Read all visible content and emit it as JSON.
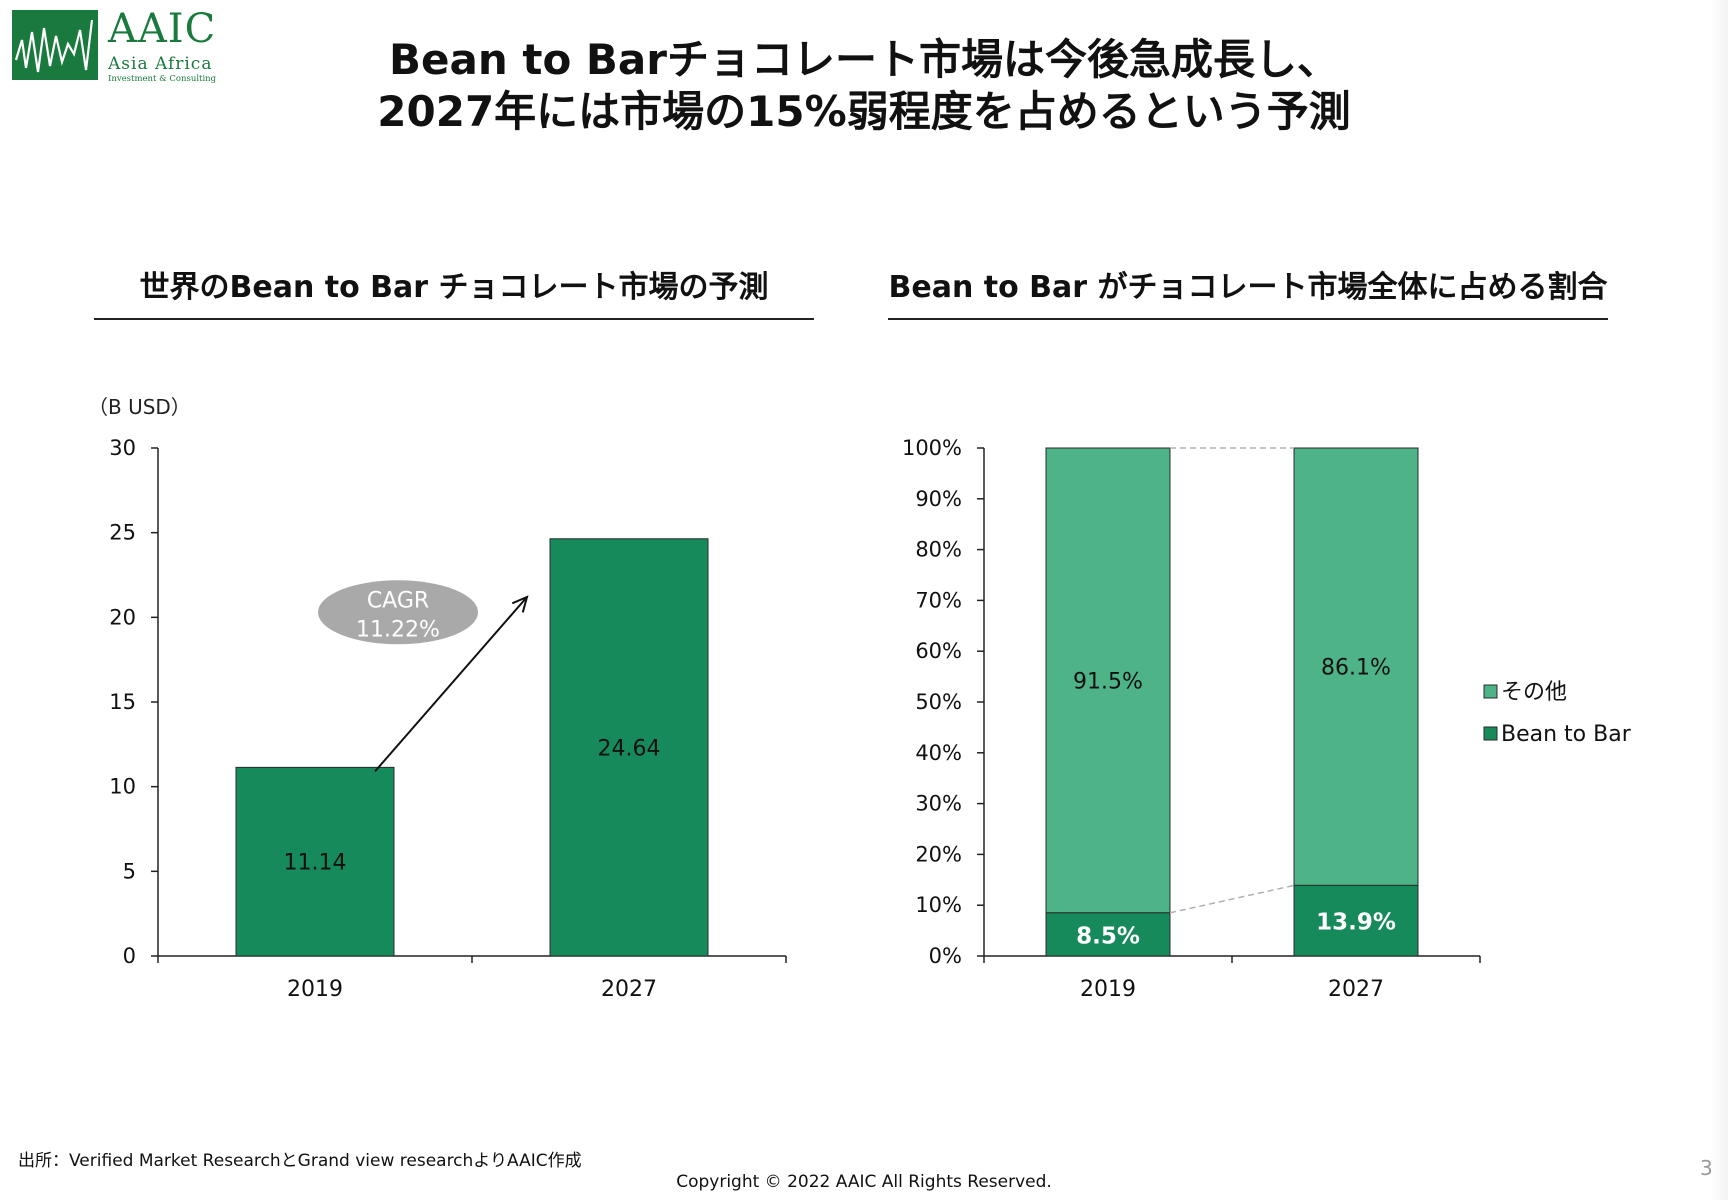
{
  "logo": {
    "text": "AAIC",
    "subtitle": "Asia Africa",
    "subtitle2": "Investment & Consulting",
    "color": "#1a7a3e"
  },
  "title": {
    "line1": "Bean to Barチョコレート市場は今後急成長し、",
    "line2": "2027年には市場の15%弱程度を占めるという予測"
  },
  "left_section": {
    "title": "世界のBean to Bar チョコレート市場の予測"
  },
  "right_section": {
    "title": "Bean to Bar がチョコレート市場全体に占める割合"
  },
  "chart_data": [
    {
      "type": "bar",
      "unit_label": "（B USD）",
      "categories": [
        "2019",
        "2027"
      ],
      "values": [
        11.14,
        24.64
      ],
      "value_labels": [
        "11.14",
        "24.64"
      ],
      "ylim": [
        0,
        30
      ],
      "yticks": [
        0,
        5,
        10,
        15,
        20,
        25,
        30
      ],
      "ytick_labels": [
        "0",
        "5",
        "10",
        "15",
        "20",
        "25",
        "30"
      ],
      "bar_color": "#168a5a",
      "annotation": {
        "line1": "CAGR",
        "line2": "11.22%"
      },
      "grid": false
    },
    {
      "type": "bar",
      "stacked": true,
      "categories": [
        "2019",
        "2027"
      ],
      "series": [
        {
          "name": "Bean to Bar",
          "values": [
            8.5,
            13.9
          ],
          "labels": [
            "8.5%",
            "13.9%"
          ],
          "color": "#168a5a"
        },
        {
          "name": "その他",
          "values": [
            91.5,
            86.1
          ],
          "labels": [
            "91.5%",
            "86.1%"
          ],
          "color": "#4eb387"
        }
      ],
      "ylim": [
        0,
        100
      ],
      "yticks": [
        0,
        10,
        20,
        30,
        40,
        50,
        60,
        70,
        80,
        90,
        100
      ],
      "ytick_labels": [
        "0%",
        "10%",
        "20%",
        "30%",
        "40%",
        "50%",
        "60%",
        "70%",
        "80%",
        "90%",
        "100%"
      ],
      "legend": {
        "position": "right",
        "items": [
          "その他",
          "Bean to Bar"
        ]
      },
      "grid": false
    }
  ],
  "footer": {
    "source": "出所：Verified Market ResearchとGrand view researchよりAAIC作成",
    "copyright": "Copyright © 2022 AAIC All Rights Reserved.",
    "page": "3"
  }
}
